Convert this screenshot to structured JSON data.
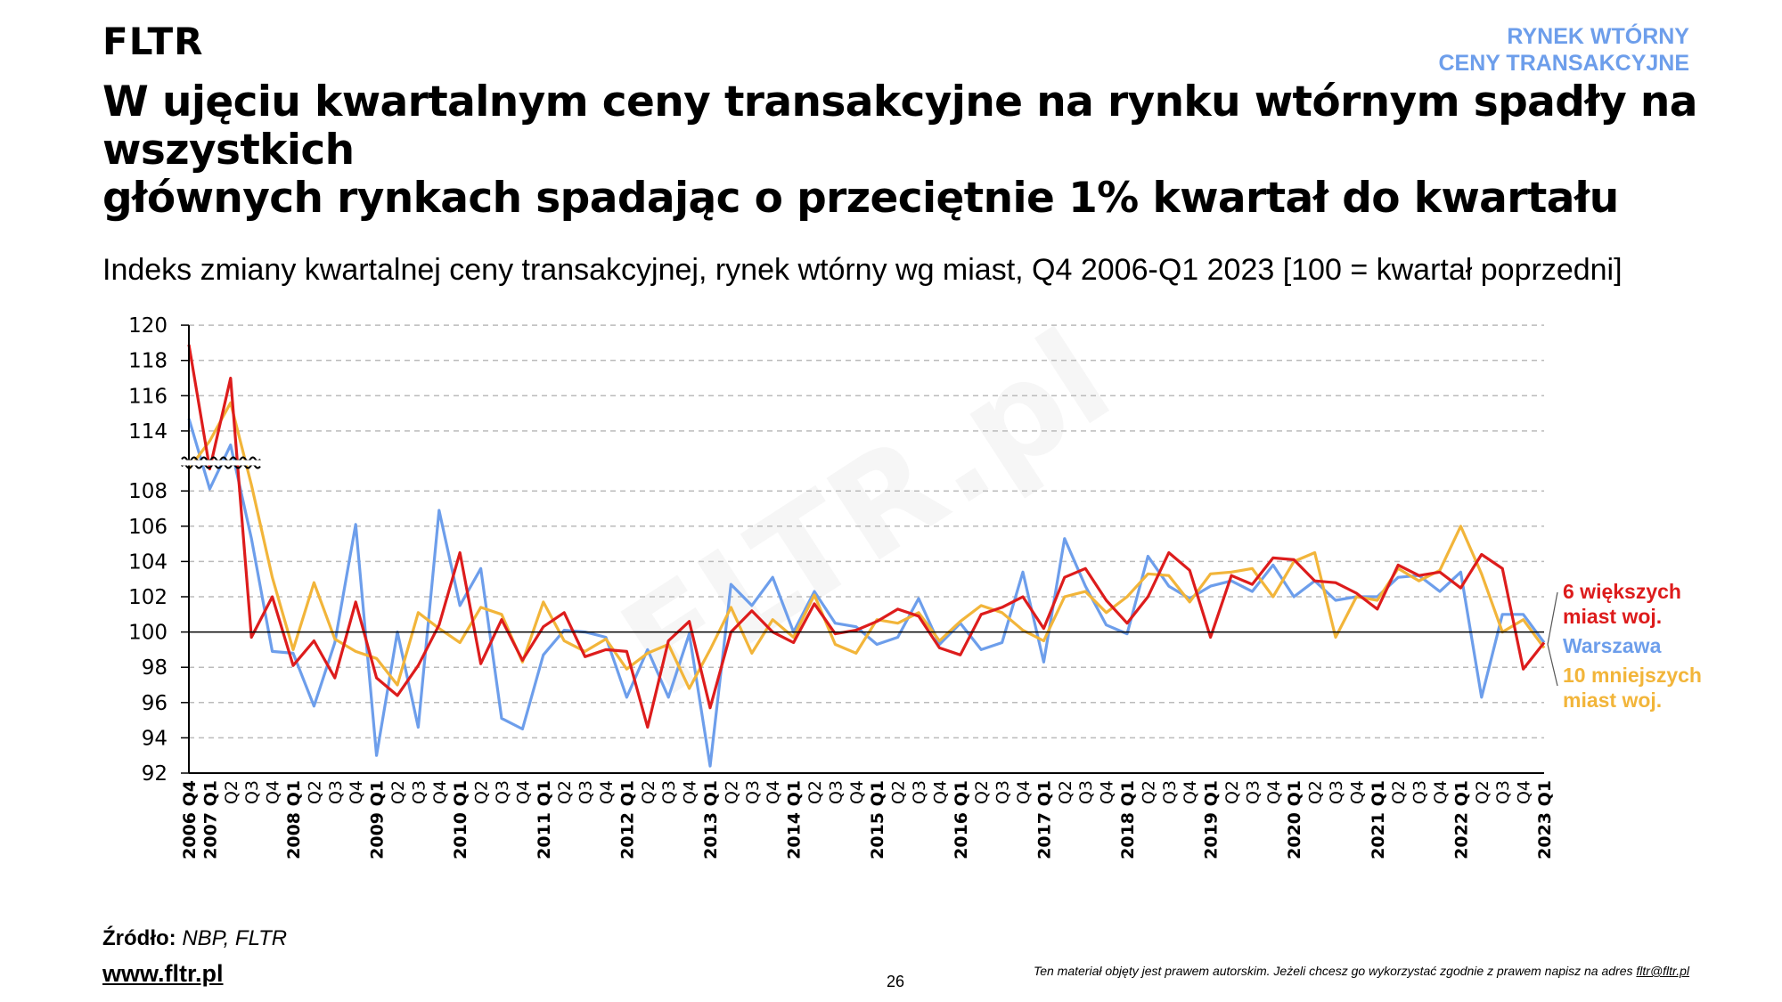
{
  "header": {
    "brand": "FLTR",
    "tag_line1": "RYNEK WTÓRNY",
    "tag_line2": "CENY TRANSAKCYJNE",
    "title_line1": "W ujęciu kwartalnym ceny transakcyjne na rynku wtórnym spadły na wszystkich",
    "title_line2": "głównych rynkach spadając o przeciętnie 1% kwartał do kwartału"
  },
  "footer": {
    "source_label": "Źródło:",
    "source_value": "NBP, FLTR",
    "website": "www.fltr.pl",
    "page_number": "26",
    "legal_text": "Ten materiał objęty jest prawem autorskim. Jeżeli chcesz go wykorzystać zgodnie z prawem napisz na adres",
    "legal_email": "fltr@fltr.pl"
  },
  "watermark": "FLTR.pl",
  "chart_data": {
    "type": "line",
    "title": "Indeks zmiany kwartalnej ceny transakcyjnej, rynek wtórny wg miast, Q4 2006-Q1 2023 [100 = kwartał poprzedni]",
    "xlabel": "",
    "ylabel": "",
    "ylim": [
      92,
      120
    ],
    "y_axis_break": [
      108,
      114
    ],
    "yticks": [
      92,
      94,
      96,
      98,
      100,
      102,
      104,
      106,
      108,
      114,
      116,
      118,
      120
    ],
    "reference_line": 100,
    "grid": true,
    "legend_placement": "right",
    "categories": [
      "2006 Q4",
      "2007 Q1",
      "Q2",
      "Q3",
      "Q4",
      "2008 Q1",
      "Q2",
      "Q3",
      "Q4",
      "2009 Q1",
      "Q2",
      "Q3",
      "Q4",
      "2010 Q1",
      "Q2",
      "Q3",
      "Q4",
      "2011 Q1",
      "Q2",
      "Q3",
      "Q4",
      "2012 Q1",
      "Q2",
      "Q3",
      "Q4",
      "2013 Q1",
      "Q2",
      "Q3",
      "Q4",
      "2014 Q1",
      "Q2",
      "Q3",
      "Q4",
      "2015 Q1",
      "Q2",
      "Q3",
      "Q4",
      "2016 Q1",
      "Q2",
      "Q3",
      "Q4",
      "2017 Q1",
      "Q2",
      "Q3",
      "Q4",
      "2018 Q1",
      "Q2",
      "Q3",
      "Q4",
      "2019 Q1",
      "Q2",
      "Q3",
      "Q4",
      "2020 Q1",
      "Q2",
      "Q3",
      "Q4",
      "2021 Q1",
      "Q2",
      "Q3",
      "Q4",
      "2022 Q1",
      "Q2",
      "Q3",
      "Q4",
      "2023 Q1"
    ],
    "series": [
      {
        "name": "Warszawa",
        "legend_lines": [
          "Warszawa"
        ],
        "color": "#6d9eeb",
        "values": [
          114.7,
          108.2,
          112.6,
          105.3,
          98.9,
          98.8,
          95.8,
          99.4,
          106.1,
          93.0,
          100.0,
          94.6,
          106.9,
          101.5,
          103.6,
          95.1,
          94.5,
          98.7,
          100.1,
          100.0,
          99.7,
          96.3,
          99.0,
          96.3,
          99.9,
          92.4,
          102.7,
          101.5,
          103.1,
          100.0,
          102.3,
          100.5,
          100.3,
          99.3,
          99.7,
          101.9,
          99.3,
          100.5,
          99.0,
          99.4,
          103.4,
          98.3,
          105.3,
          102.6,
          100.4,
          99.9,
          104.3,
          102.6,
          101.9,
          102.6,
          102.9,
          102.3,
          103.8,
          102.0,
          102.9,
          101.8,
          102.0,
          102.0,
          103.1,
          103.2,
          102.3,
          103.4,
          96.3,
          101.0,
          101.0,
          99.4
        ]
      },
      {
        "name": "10 mniejszych miast woj.",
        "legend_lines": [
          "10 mniejszych",
          "miast woj."
        ],
        "color": "#f2b53a",
        "values": [
          110.2,
          113.0,
          115.6,
          108.6,
          103.1,
          99.0,
          102.8,
          99.6,
          98.9,
          98.5,
          97.0,
          101.1,
          100.2,
          99.4,
          101.4,
          101.0,
          98.3,
          101.7,
          99.5,
          98.9,
          99.6,
          97.9,
          98.8,
          99.3,
          96.8,
          99.0,
          101.4,
          98.8,
          100.7,
          99.7,
          102.1,
          99.3,
          98.8,
          100.7,
          100.5,
          101.1,
          99.5,
          100.6,
          101.5,
          101.1,
          100.1,
          99.5,
          102.0,
          102.3,
          101.1,
          102.0,
          103.3,
          103.2,
          101.7,
          103.3,
          103.4,
          103.6,
          102.0,
          104.0,
          104.5,
          99.7,
          102.0,
          101.8,
          103.6,
          102.9,
          103.5,
          106.0,
          103.3,
          100.0,
          100.7,
          99.1
        ]
      },
      {
        "name": "6 większych miast woj.",
        "legend_lines": [
          "6 większych",
          "miast woj."
        ],
        "color": "#dd1c1c",
        "values": [
          118.9,
          110.2,
          117.0,
          99.7,
          102.0,
          98.1,
          99.5,
          97.4,
          101.7,
          97.4,
          96.4,
          98.1,
          100.4,
          104.5,
          98.2,
          100.7,
          98.4,
          100.3,
          101.1,
          98.6,
          99.0,
          98.9,
          94.6,
          99.5,
          100.6,
          95.7,
          100.0,
          101.2,
          100.0,
          99.4,
          101.6,
          99.9,
          100.1,
          100.6,
          101.3,
          100.9,
          99.1,
          98.7,
          101.0,
          101.4,
          102.0,
          100.2,
          103.1,
          103.6,
          101.8,
          100.5,
          102.0,
          104.5,
          103.5,
          99.7,
          103.2,
          102.7,
          104.2,
          104.1,
          102.9,
          102.8,
          102.2,
          101.3,
          103.8,
          103.2,
          103.4,
          102.5,
          104.4,
          103.6,
          97.9,
          99.4
        ]
      }
    ]
  }
}
